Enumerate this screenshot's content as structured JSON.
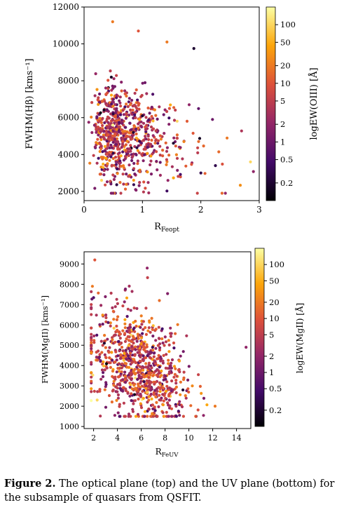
{
  "caption": {
    "label": "Figure 2.",
    "text": "The optical plane (top) and the UV plane (bottom) for the subsample of quasars from QSFIT."
  },
  "colormap": [
    "#000004",
    "#420a68",
    "#932667",
    "#dd513a",
    "#fca50a",
    "#fcffa4"
  ],
  "chart_data": [
    {
      "type": "scatter",
      "panel": "top",
      "xlabel": "R",
      "xlabel_sub": "Feopt",
      "ylabel": "FWHM(Hβ) [kms⁻¹]",
      "xlim": [
        0,
        3
      ],
      "ylim": [
        1500,
        12000
      ],
      "xticks": [
        0,
        1,
        2,
        3
      ],
      "yticks": [
        2000,
        4000,
        6000,
        8000,
        10000,
        12000
      ],
      "colorbar_label": "logEW(OIII) [Å]",
      "colorbar_range": [
        0.1,
        200
      ],
      "colorbar_ticks": [
        0.2,
        0.5,
        1,
        2,
        5,
        10,
        20,
        50,
        100
      ],
      "grid": false,
      "points_sample": [
        {
          "x": 0.49,
          "y": 11200,
          "ew": 20
        },
        {
          "x": 0.93,
          "y": 10700,
          "ew": 10
        },
        {
          "x": 1.42,
          "y": 10100,
          "ew": 20
        },
        {
          "x": 1.88,
          "y": 9750,
          "ew": 0.2
        },
        {
          "x": 2.85,
          "y": 3600,
          "ew": 100
        },
        {
          "x": 2.25,
          "y": 3400,
          "ew": 0.3
        },
        {
          "x": 2.42,
          "y": 1900,
          "ew": 2
        },
        {
          "x": 2.2,
          "y": 5900,
          "ew": 1
        },
        {
          "x": 1.8,
          "y": 6700,
          "ew": 2
        },
        {
          "x": 2.0,
          "y": 3000,
          "ew": 0.3
        },
        {
          "x": 0.3,
          "y": 2600,
          "ew": 100
        },
        {
          "x": 1.0,
          "y": 6100,
          "ew": 0.2
        }
      ],
      "n_points": 750
    },
    {
      "type": "scatter",
      "panel": "bottom",
      "xlabel": "R",
      "xlabel_sub": "FeUV",
      "ylabel": "FWHM(MgII) [kms⁻¹]",
      "xlim": [
        1.2,
        15.2
      ],
      "ylim": [
        900,
        9600
      ],
      "xticks": [
        2,
        4,
        6,
        8,
        10,
        12,
        14
      ],
      "yticks": [
        1000,
        2000,
        3000,
        4000,
        5000,
        6000,
        7000,
        8000,
        9000
      ],
      "colorbar_label": "logEW(MgII) [Å]",
      "colorbar_range": [
        0.1,
        200
      ],
      "colorbar_ticks": [
        0.2,
        0.5,
        1,
        2,
        5,
        10,
        20,
        50,
        100
      ],
      "grid": false,
      "points_sample": [
        {
          "x": 2.1,
          "y": 9200,
          "ew": 10
        },
        {
          "x": 14.8,
          "y": 4900,
          "ew": 2
        },
        {
          "x": 1.9,
          "y": 7900,
          "ew": 20
        },
        {
          "x": 2.9,
          "y": 5100,
          "ew": 0.2
        },
        {
          "x": 12.2,
          "y": 2000,
          "ew": 20
        },
        {
          "x": 6.5,
          "y": 8800,
          "ew": 2
        },
        {
          "x": 2.3,
          "y": 2300,
          "ew": 100
        },
        {
          "x": 9.5,
          "y": 2800,
          "ew": 0.2
        }
      ],
      "n_points": 850
    }
  ]
}
